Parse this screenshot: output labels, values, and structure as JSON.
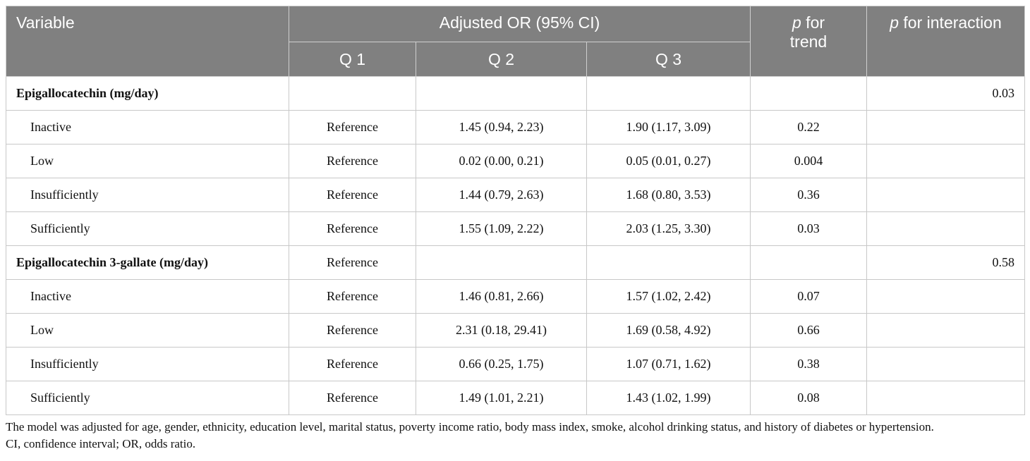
{
  "header": {
    "variable": "Variable",
    "adjusted_or": "Adjusted OR (95% CI)",
    "q1": "Q 1",
    "q2": "Q 2",
    "q3": "Q 3",
    "p_trend_italic": "p",
    "p_trend_rest": " for",
    "p_trend_line2": "trend",
    "p_inter_italic": "p",
    "p_inter_rest": " for interaction"
  },
  "rows": [
    {
      "variable": "Epigallocatechin (mg/day)",
      "q1": "",
      "q2": "",
      "q3": "",
      "p_trend": "",
      "p_interaction": "0.03"
    },
    {
      "variable": "Inactive",
      "q1": "Reference",
      "q2": "1.45 (0.94, 2.23)",
      "q3": "1.90 (1.17, 3.09)",
      "p_trend": "0.22",
      "p_interaction": ""
    },
    {
      "variable": "Low",
      "q1": "Reference",
      "q2": "0.02 (0.00, 0.21)",
      "q3": "0.05 (0.01, 0.27)",
      "p_trend": "0.004",
      "p_interaction": ""
    },
    {
      "variable": "Insufficiently",
      "q1": "Reference",
      "q2": "1.44 (0.79, 2.63)",
      "q3": "1.68 (0.80, 3.53)",
      "p_trend": "0.36",
      "p_interaction": ""
    },
    {
      "variable": "Sufficiently",
      "q1": "Reference",
      "q2": "1.55 (1.09, 2.22)",
      "q3": "2.03 (1.25, 3.30)",
      "p_trend": "0.03",
      "p_interaction": ""
    },
    {
      "variable": "Epigallocatechin 3-gallate (mg/day)",
      "q1": "Reference",
      "q2": "",
      "q3": "",
      "p_trend": "",
      "p_interaction": "0.58"
    },
    {
      "variable": "Inactive",
      "q1": "Reference",
      "q2": "1.46 (0.81, 2.66)",
      "q3": "1.57 (1.02, 2.42)",
      "p_trend": "0.07",
      "p_interaction": ""
    },
    {
      "variable": "Low",
      "q1": "Reference",
      "q2": "2.31 (0.18, 29.41)",
      "q3": "1.69 (0.58, 4.92)",
      "p_trend": "0.66",
      "p_interaction": ""
    },
    {
      "variable": "Insufficiently",
      "q1": "Reference",
      "q2": "0.66 (0.25, 1.75)",
      "q3": "1.07 (0.71, 1.62)",
      "p_trend": "0.38",
      "p_interaction": ""
    },
    {
      "variable": "Sufficiently",
      "q1": "Reference",
      "q2": "1.49 (1.01, 2.21)",
      "q3": "1.43 (1.02, 1.99)",
      "p_trend": "0.08",
      "p_interaction": ""
    }
  ],
  "footnote": {
    "line1": "The model was adjusted for age, gender, ethnicity, education level, marital status, poverty income ratio, body mass index, smoke, alcohol drinking status, and history of diabetes or hypertension.",
    "line2": "CI, confidence interval; OR, odds ratio."
  },
  "colors": {
    "header_bg": "#808080",
    "header_text": "#ffffff",
    "border": "#c8c8c8"
  }
}
